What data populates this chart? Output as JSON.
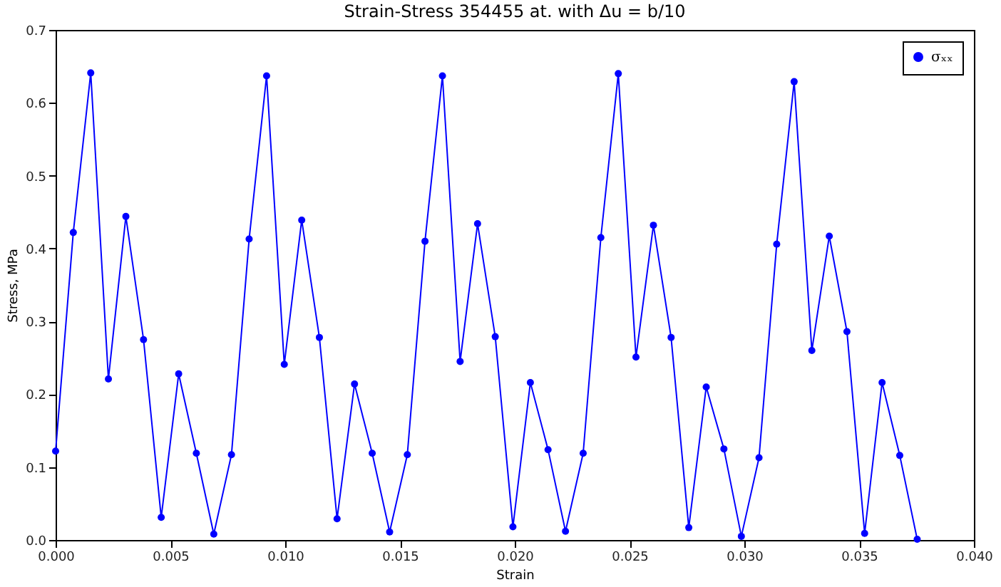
{
  "chart_data": {
    "type": "line",
    "title": "Strain-Stress 354455 at. with Δu = b/10",
    "xlabel": "Strain",
    "ylabel": "Stress, MPa",
    "x": [
      0,
      0.00077,
      0.00153,
      0.0023,
      0.00306,
      0.00383,
      0.0046,
      0.00536,
      0.00613,
      0.00689,
      0.00766,
      0.00843,
      0.00919,
      0.00996,
      0.01072,
      0.01149,
      0.01226,
      0.01302,
      0.01379,
      0.01455,
      0.01532,
      0.01609,
      0.01685,
      0.01762,
      0.01838,
      0.01915,
      0.01992,
      0.02068,
      0.02145,
      0.02221,
      0.02298,
      0.02375,
      0.02451,
      0.02528,
      0.02604,
      0.02681,
      0.02758,
      0.02834,
      0.02911,
      0.02987,
      0.03064,
      0.03141,
      0.03217,
      0.03294,
      0.0337,
      0.03447,
      0.03524,
      0.036,
      0.03677,
      0.03753
    ],
    "series": [
      {
        "name": "σₓₓ",
        "color": "#0000ff",
        "values": [
          0.122,
          0.422,
          0.641,
          0.221,
          0.444,
          0.275,
          0.031,
          0.228,
          0.119,
          0.008,
          0.117,
          0.413,
          0.637,
          0.241,
          0.439,
          0.278,
          0.029,
          0.214,
          0.119,
          0.011,
          0.117,
          0.41,
          0.637,
          0.245,
          0.434,
          0.279,
          0.018,
          0.216,
          0.124,
          0.012,
          0.119,
          0.415,
          0.64,
          0.251,
          0.432,
          0.278,
          0.017,
          0.21,
          0.125,
          0.005,
          0.113,
          0.406,
          0.629,
          0.26,
          0.417,
          0.286,
          0.009,
          0.216,
          0.116,
          0.001
        ]
      }
    ],
    "xlim": [
      0,
      0.04
    ],
    "ylim": [
      0,
      0.7
    ],
    "xticks": [
      {
        "value": 0,
        "label": "0.000"
      },
      0.005,
      {
        "value": 0.01,
        "label": "0.010"
      },
      0.015,
      {
        "value": 0.02,
        "label": "0.020"
      },
      0.025,
      {
        "value": 0.03,
        "label": "0.030"
      },
      0.035,
      {
        "value": 0.04,
        "label": "0.040"
      }
    ],
    "yticks": [
      {
        "value": 0,
        "label": "0.0"
      },
      0.1,
      0.2,
      0.3,
      0.4,
      0.5,
      0.6,
      0.7
    ],
    "marker": "circle",
    "line_style": "solid",
    "legend": "top right",
    "grid": false
  }
}
